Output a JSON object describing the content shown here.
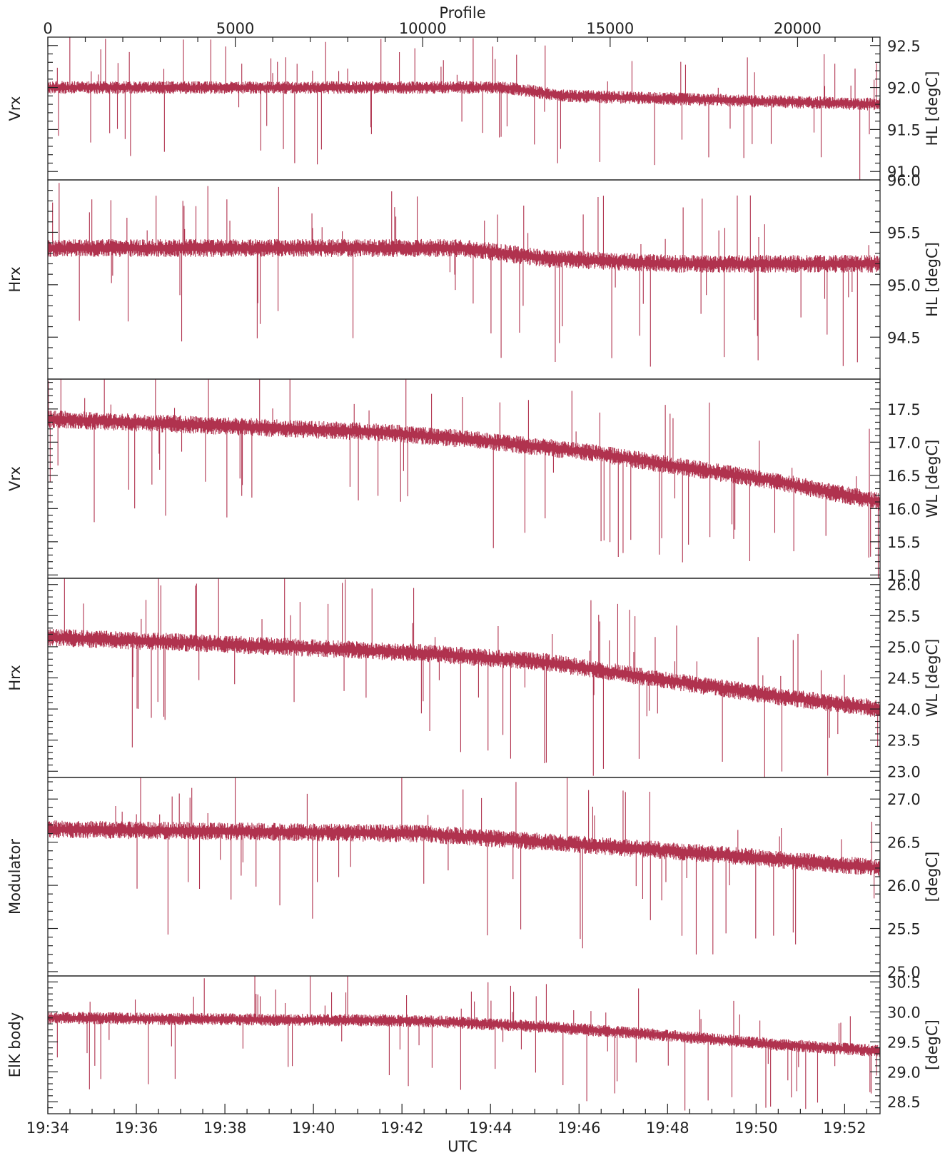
{
  "chart_data": {
    "type": "line",
    "series_color": "#b0324e",
    "top_axis": {
      "label": "Profile",
      "range": [
        0,
        22200
      ],
      "ticks": [
        0,
        5000,
        10000,
        15000,
        20000
      ],
      "minor_step": 1000
    },
    "bottom_axis": {
      "label": "UTC",
      "range_minutes": [
        1174,
        1192.8
      ],
      "ticks": [
        "19:34",
        "19:36",
        "19:38",
        "19:40",
        "19:42",
        "19:44",
        "19:46",
        "19:48",
        "19:50",
        "19:52"
      ],
      "minor_step_minutes": 0.5
    },
    "panels": [
      {
        "left_label": "Vrx",
        "right_label": "HL [degC]",
        "ylim": [
          90.9,
          92.6
        ],
        "yticks": [
          "91.0",
          "91.5",
          "92.0",
          "92.5"
        ],
        "minor_step": 0.1,
        "levels": [
          [
            0,
            92.0
          ],
          [
            0.55,
            92.0
          ],
          [
            0.62,
            91.9
          ],
          [
            1.0,
            91.8
          ]
        ]
      },
      {
        "left_label": "Hrx",
        "right_label": "HL [degC]",
        "ylim": [
          94.1,
          96.0
        ],
        "yticks": [
          "94.5",
          "95.0",
          "95.5",
          "96.0"
        ],
        "minor_step": 0.1,
        "levels": [
          [
            0,
            95.35
          ],
          [
            0.5,
            95.35
          ],
          [
            0.6,
            95.25
          ],
          [
            0.75,
            95.2
          ],
          [
            1.0,
            95.2
          ]
        ]
      },
      {
        "left_label": "Vrx",
        "right_label": "WL [degC]",
        "ylim": [
          14.95,
          17.95
        ],
        "yticks": [
          "15.0",
          "15.5",
          "16.0",
          "16.5",
          "17.0",
          "17.5"
        ],
        "minor_step": 0.1,
        "levels": [
          [
            0,
            17.35
          ],
          [
            0.2,
            17.25
          ],
          [
            0.4,
            17.15
          ],
          [
            0.5,
            17.05
          ],
          [
            0.65,
            16.85
          ],
          [
            0.75,
            16.65
          ],
          [
            0.88,
            16.4
          ],
          [
            1.0,
            16.1
          ]
        ]
      },
      {
        "left_label": "Hrx",
        "right_label": "WL [degC]",
        "ylim": [
          22.9,
          26.1
        ],
        "yticks": [
          "23.0",
          "23.5",
          "24.0",
          "24.5",
          "25.0",
          "25.5",
          "26.0"
        ],
        "minor_step": 0.1,
        "levels": [
          [
            0,
            25.15
          ],
          [
            0.2,
            25.05
          ],
          [
            0.45,
            24.9
          ],
          [
            0.6,
            24.75
          ],
          [
            0.75,
            24.45
          ],
          [
            0.88,
            24.2
          ],
          [
            1.0,
            24.0
          ]
        ]
      },
      {
        "left_label": "Modulator",
        "right_label": "[degC]",
        "ylim": [
          24.95,
          27.25
        ],
        "yticks": [
          "25.0",
          "25.5",
          "26.0",
          "26.5",
          "27.0"
        ],
        "minor_step": 0.1,
        "levels": [
          [
            0,
            26.65
          ],
          [
            0.45,
            26.6
          ],
          [
            0.6,
            26.5
          ],
          [
            0.75,
            26.4
          ],
          [
            0.88,
            26.3
          ],
          [
            1.0,
            26.2
          ]
        ]
      },
      {
        "left_label": "ElK body",
        "right_label": "[degC]",
        "ylim": [
          28.3,
          30.6
        ],
        "yticks": [
          "28.5",
          "29.0",
          "29.5",
          "30.0",
          "30.5"
        ],
        "minor_step": 0.1,
        "levels": [
          [
            0,
            29.9
          ],
          [
            0.45,
            29.85
          ],
          [
            0.6,
            29.75
          ],
          [
            0.75,
            29.6
          ],
          [
            0.88,
            29.45
          ],
          [
            1.0,
            29.35
          ]
        ]
      }
    ]
  }
}
